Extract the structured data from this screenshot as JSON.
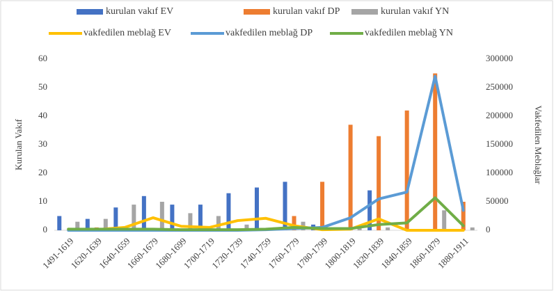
{
  "chart_data": {
    "type": "bar_line",
    "categories": [
      "1491-1619",
      "1620-1639",
      "1640-1659",
      "1660-1679",
      "1680-1699",
      "1700-1719",
      "1720-1739",
      "1740-1759",
      "1760-1779",
      "1780-1799",
      "1800-1819",
      "1820-1839",
      "1840-1859",
      "1860-1879",
      "1880-1911"
    ],
    "series": [
      {
        "name": "kurulan vakıf EV",
        "color": "#4472c4",
        "kind": "bar",
        "values": [
          5,
          4,
          8,
          12,
          9,
          9,
          13,
          15,
          17,
          2,
          0,
          14,
          0,
          0,
          0
        ]
      },
      {
        "name": "kurulan vakıf DP",
        "color": "#ed7d31",
        "kind": "bar",
        "values": [
          0,
          1,
          0,
          0,
          0,
          0,
          0,
          0,
          5,
          17,
          37,
          33,
          42,
          55,
          10
        ]
      },
      {
        "name": "kurulan vakıf YN",
        "color": "#a5a5a5",
        "kind": "bar",
        "values": [
          3,
          4,
          9,
          10,
          6,
          5,
          2,
          1,
          3,
          0,
          1,
          1,
          0,
          7,
          1
        ]
      },
      {
        "name": "vakfedilen meblağ EV",
        "color": "#ffc000",
        "kind": "line",
        "axis": "y2",
        "values": [
          2000,
          1000,
          5000,
          22000,
          7000,
          5000,
          17000,
          21000,
          8000,
          1000,
          2000,
          20000,
          0,
          0,
          0
        ]
      },
      {
        "name": "vakfedilen meblağ DP",
        "color": "#5b9bd5",
        "kind": "line",
        "axis": "y2",
        "values": [
          0,
          0,
          0,
          0,
          0,
          0,
          0,
          1000,
          3000,
          5000,
          22000,
          55000,
          67000,
          270000,
          35000
        ]
      },
      {
        "name": "vakfedilen meblağ YN",
        "color": "#70ad47",
        "kind": "line",
        "axis": "y2",
        "values": [
          2000,
          2000,
          2000,
          2000,
          1000,
          1000,
          1000,
          2000,
          5000,
          3000,
          3000,
          10000,
          13000,
          57000,
          8000
        ]
      }
    ],
    "ylabel": "Kurulan Vakıf",
    "y2label": "Vakfedilen Meblağlar",
    "ylim": [
      0,
      60
    ],
    "yticks": [
      0,
      10,
      20,
      30,
      40,
      50,
      60
    ],
    "y2lim": [
      0,
      300000
    ],
    "y2ticks": [
      0,
      50000,
      100000,
      150000,
      200000,
      250000,
      300000
    ],
    "grid": false
  }
}
